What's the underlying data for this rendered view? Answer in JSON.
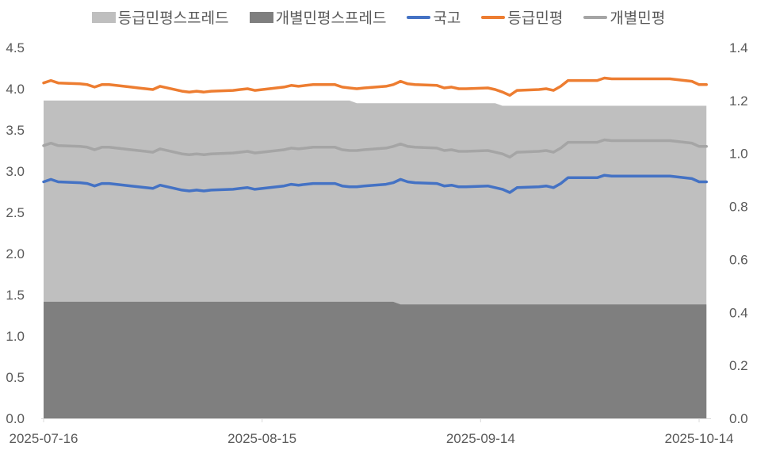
{
  "chart_data": {
    "type": "area+line",
    "legend_position": "top",
    "grid": false,
    "left_axis": {
      "ylim": [
        0,
        4.5
      ],
      "ticks": [
        "0.0",
        "0.5",
        "1.0",
        "1.5",
        "2.0",
        "2.5",
        "3.0",
        "3.5",
        "4.0",
        "4.5"
      ]
    },
    "right_axis": {
      "ylim": [
        0,
        1.4
      ],
      "ticks": [
        "0.0",
        "0.2",
        "0.4",
        "0.6",
        "0.8",
        "1.0",
        "1.2",
        "1.4"
      ]
    },
    "x_ticks": [
      "2025-07-16",
      "2025-08-15",
      "2025-09-14",
      "2025-10-14"
    ],
    "x": [
      "2025-07-16",
      "2025-07-17",
      "2025-07-18",
      "2025-07-21",
      "2025-07-22",
      "2025-07-23",
      "2025-07-24",
      "2025-07-25",
      "2025-07-28",
      "2025-07-29",
      "2025-07-30",
      "2025-07-31",
      "2025-08-01",
      "2025-08-04",
      "2025-08-05",
      "2025-08-06",
      "2025-08-07",
      "2025-08-08",
      "2025-08-11",
      "2025-08-12",
      "2025-08-13",
      "2025-08-14",
      "2025-08-18",
      "2025-08-19",
      "2025-08-20",
      "2025-08-21",
      "2025-08-22",
      "2025-08-25",
      "2025-08-26",
      "2025-08-27",
      "2025-08-28",
      "2025-08-29",
      "2025-09-01",
      "2025-09-02",
      "2025-09-03",
      "2025-09-04",
      "2025-09-05",
      "2025-09-08",
      "2025-09-09",
      "2025-09-10",
      "2025-09-11",
      "2025-09-12",
      "2025-09-15",
      "2025-09-16",
      "2025-09-17",
      "2025-09-18",
      "2025-09-19",
      "2025-09-22",
      "2025-09-23",
      "2025-09-24",
      "2025-09-25",
      "2025-09-26",
      "2025-09-29",
      "2025-09-30",
      "2025-10-01",
      "2025-10-02",
      "2025-10-10",
      "2025-10-13",
      "2025-10-14",
      "2025-10-15"
    ],
    "series": [
      {
        "name": "등급민평스프레드",
        "kind": "area",
        "axis": "right",
        "color": "#BFBFBF",
        "values": [
          1.2,
          1.2,
          1.2,
          1.2,
          1.2,
          1.2,
          1.2,
          1.2,
          1.2,
          1.2,
          1.2,
          1.2,
          1.2,
          1.2,
          1.2,
          1.2,
          1.2,
          1.2,
          1.2,
          1.2,
          1.2,
          1.2,
          1.2,
          1.2,
          1.2,
          1.2,
          1.2,
          1.2,
          1.2,
          1.2,
          1.19,
          1.19,
          1.19,
          1.19,
          1.19,
          1.19,
          1.19,
          1.19,
          1.19,
          1.19,
          1.19,
          1.19,
          1.19,
          1.19,
          1.18,
          1.18,
          1.18,
          1.18,
          1.18,
          1.18,
          1.18,
          1.18,
          1.18,
          1.18,
          1.18,
          1.18,
          1.18,
          1.18,
          1.18,
          1.18
        ]
      },
      {
        "name": "개별민평스프레드",
        "kind": "area",
        "axis": "right",
        "color": "#7F7F7F",
        "values": [
          0.44,
          0.44,
          0.44,
          0.44,
          0.44,
          0.44,
          0.44,
          0.44,
          0.44,
          0.44,
          0.44,
          0.44,
          0.44,
          0.44,
          0.44,
          0.44,
          0.44,
          0.44,
          0.44,
          0.44,
          0.44,
          0.44,
          0.44,
          0.44,
          0.44,
          0.44,
          0.44,
          0.44,
          0.44,
          0.44,
          0.44,
          0.44,
          0.44,
          0.44,
          0.43,
          0.43,
          0.43,
          0.43,
          0.43,
          0.43,
          0.43,
          0.43,
          0.43,
          0.43,
          0.43,
          0.43,
          0.43,
          0.43,
          0.43,
          0.43,
          0.43,
          0.43,
          0.43,
          0.43,
          0.43,
          0.43,
          0.43,
          0.43,
          0.43,
          0.43
        ]
      },
      {
        "name": "국고",
        "kind": "line",
        "axis": "left",
        "color": "#4472C4",
        "values": [
          2.87,
          2.9,
          2.87,
          2.86,
          2.85,
          2.82,
          2.85,
          2.85,
          2.82,
          2.81,
          2.8,
          2.79,
          2.83,
          2.77,
          2.76,
          2.77,
          2.76,
          2.77,
          2.78,
          2.79,
          2.8,
          2.78,
          2.82,
          2.84,
          2.83,
          2.84,
          2.85,
          2.85,
          2.82,
          2.81,
          2.81,
          2.82,
          2.84,
          2.86,
          2.9,
          2.87,
          2.86,
          2.85,
          2.82,
          2.83,
          2.81,
          2.81,
          2.82,
          2.8,
          2.78,
          2.74,
          2.8,
          2.81,
          2.82,
          2.8,
          2.85,
          2.92,
          2.92,
          2.92,
          2.95,
          2.94,
          2.94,
          2.91,
          2.87,
          2.87
        ]
      },
      {
        "name": "등급민평",
        "kind": "line",
        "axis": "left",
        "color": "#ED7D31",
        "values": [
          4.07,
          4.1,
          4.07,
          4.06,
          4.05,
          4.02,
          4.05,
          4.05,
          4.02,
          4.01,
          4.0,
          3.99,
          4.03,
          3.97,
          3.96,
          3.97,
          3.96,
          3.97,
          3.98,
          3.99,
          4.0,
          3.98,
          4.02,
          4.04,
          4.03,
          4.04,
          4.05,
          4.05,
          4.02,
          4.01,
          4.0,
          4.01,
          4.03,
          4.05,
          4.09,
          4.06,
          4.05,
          4.04,
          4.01,
          4.02,
          4.0,
          4.0,
          4.01,
          3.99,
          3.96,
          3.92,
          3.98,
          3.99,
          4.0,
          3.98,
          4.03,
          4.1,
          4.1,
          4.1,
          4.13,
          4.12,
          4.12,
          4.09,
          4.05,
          4.05
        ]
      },
      {
        "name": "개별민평",
        "kind": "line",
        "axis": "left",
        "color": "#A5A5A5",
        "values": [
          3.31,
          3.34,
          3.31,
          3.3,
          3.29,
          3.26,
          3.29,
          3.29,
          3.26,
          3.25,
          3.24,
          3.23,
          3.27,
          3.21,
          3.2,
          3.21,
          3.2,
          3.21,
          3.22,
          3.23,
          3.24,
          3.22,
          3.26,
          3.28,
          3.27,
          3.28,
          3.29,
          3.29,
          3.26,
          3.25,
          3.25,
          3.26,
          3.28,
          3.3,
          3.33,
          3.3,
          3.29,
          3.28,
          3.25,
          3.26,
          3.24,
          3.24,
          3.25,
          3.23,
          3.21,
          3.17,
          3.23,
          3.24,
          3.25,
          3.23,
          3.28,
          3.35,
          3.35,
          3.35,
          3.38,
          3.37,
          3.37,
          3.34,
          3.3,
          3.3
        ]
      }
    ]
  }
}
